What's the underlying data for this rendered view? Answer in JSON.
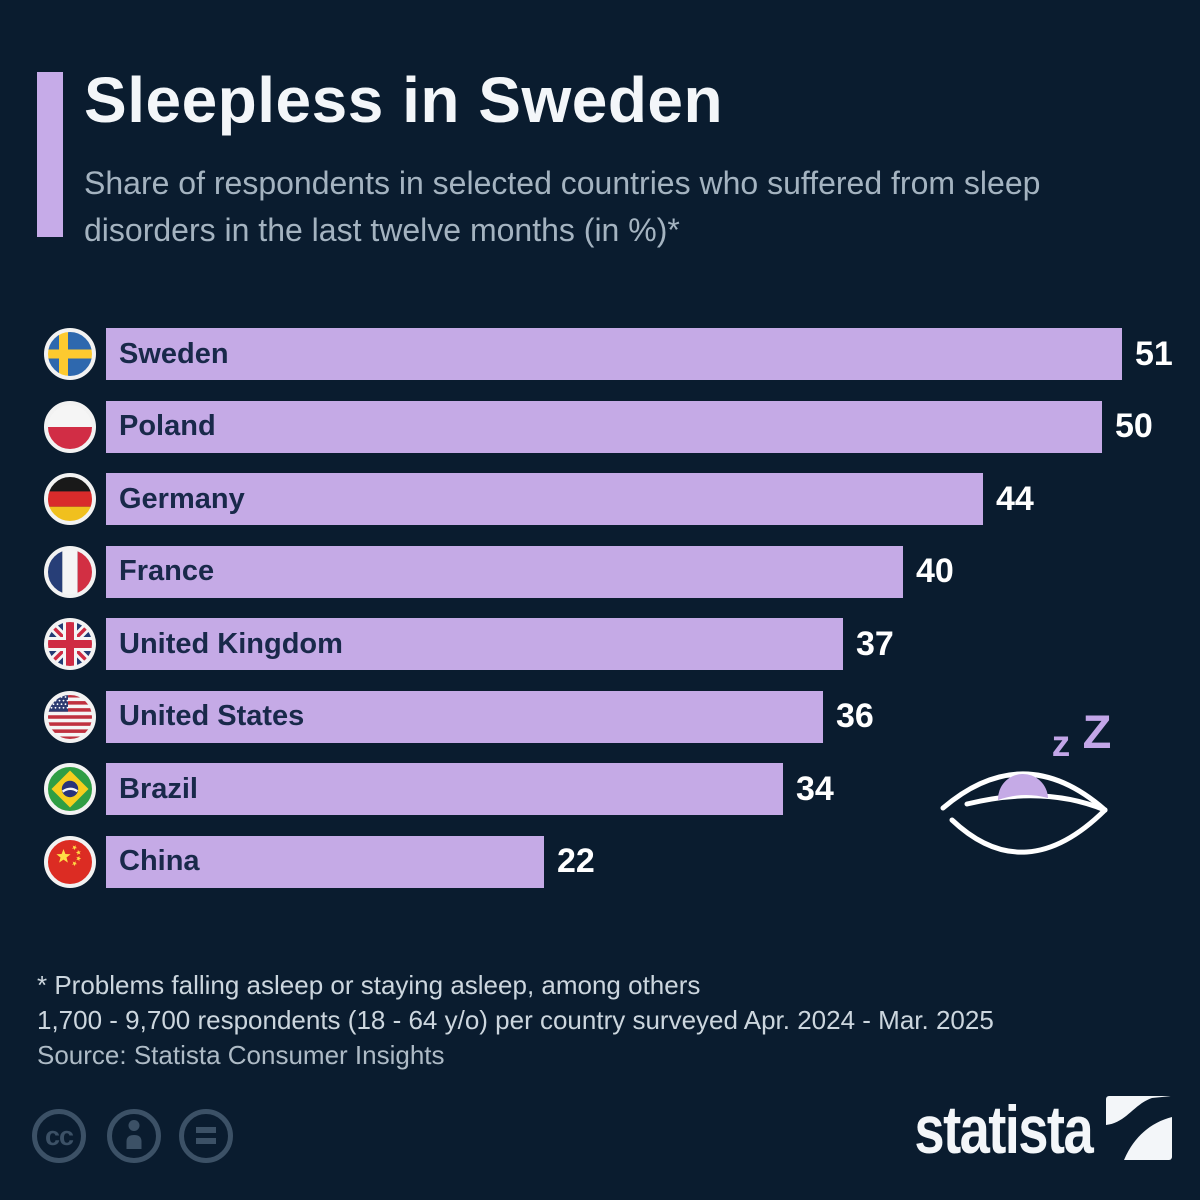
{
  "header": {
    "title": "Sleepless in Sweden",
    "subtitle": "Share of respondents in selected countries who suffered from sleep disorders in the last twelve months (in %)*"
  },
  "chart_data": {
    "type": "bar",
    "orientation": "horizontal",
    "title": "Sleepless in Sweden",
    "unit": "%",
    "categories": [
      "Sweden",
      "Poland",
      "Germany",
      "France",
      "United Kingdom",
      "United States",
      "Brazil",
      "China"
    ],
    "values": [
      51,
      50,
      44,
      40,
      37,
      36,
      34,
      22
    ],
    "flags": [
      "sweden",
      "poland",
      "germany",
      "france",
      "united-kingdom",
      "united-states",
      "brazil",
      "china"
    ],
    "xlim": [
      0,
      51
    ],
    "bar_color": "#c5aae6",
    "label_color": "#19294a",
    "value_color": "#ffffff",
    "legend": "none",
    "grid": "off"
  },
  "illustration": {
    "zzz_small": "z",
    "zzz_large": "Z"
  },
  "footer": {
    "footnote_line1": "* Problems falling asleep or staying asleep, among others",
    "footnote_line2": "1,700 - 9,700 respondents (18 - 64 y/o) per country surveyed Apr. 2024 - Mar. 2025",
    "source": "Source: Statista Consumer Insights",
    "brand": "statista",
    "license_icons": [
      "cc",
      "attribution",
      "equal"
    ]
  },
  "colors": {
    "background": "#0a1c2f",
    "accent": "#c5aae6",
    "title_text": "#f3f6f9",
    "subtitle_text": "#a4b3c0",
    "footnote_text": "#ccd6de",
    "license_icon": "#3c5166"
  }
}
